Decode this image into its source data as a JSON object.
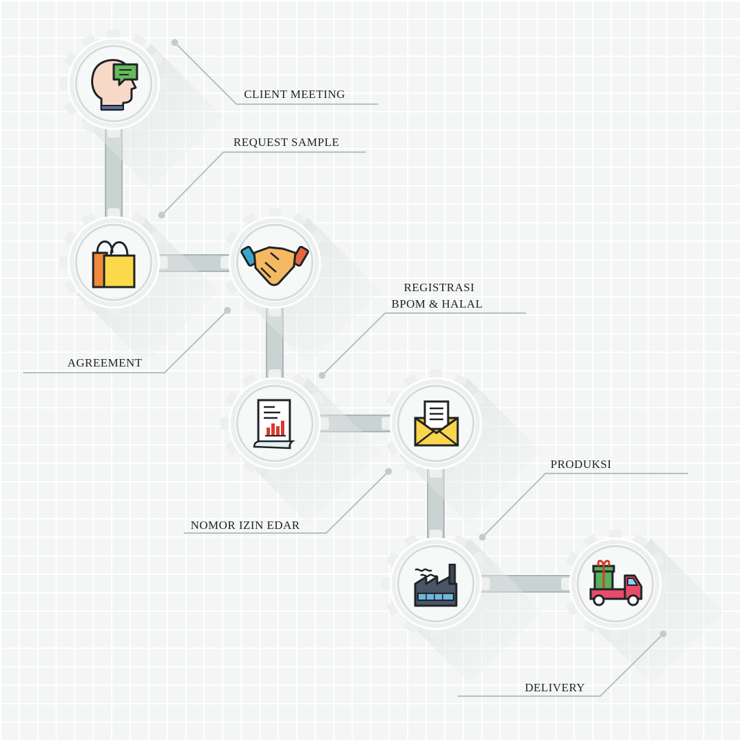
{
  "steps": [
    {
      "label": "CLIENT MEETING",
      "icon": "head-chat-icon"
    },
    {
      "label": "REQUEST SAMPLE",
      "icon": "shopping-bag-icon"
    },
    {
      "label": "AGREEMENT",
      "icon": "handshake-icon"
    },
    {
      "label_line1": "REGISTRASI",
      "label_line2": "BPOM & HALAL",
      "icon": "report-document-icon"
    },
    {
      "label": "NOMOR IZIN EDAR",
      "icon": "envelope-letter-icon"
    },
    {
      "label": "PRODUKSI",
      "icon": "factory-icon"
    },
    {
      "label": "DELIVERY",
      "icon": "delivery-truck-icon"
    }
  ],
  "colors": {
    "connector": "#c9d3d2",
    "connector_stroke": "#a9b6b5",
    "gear": "#eef0f0",
    "leader": "#b6c0bf"
  }
}
